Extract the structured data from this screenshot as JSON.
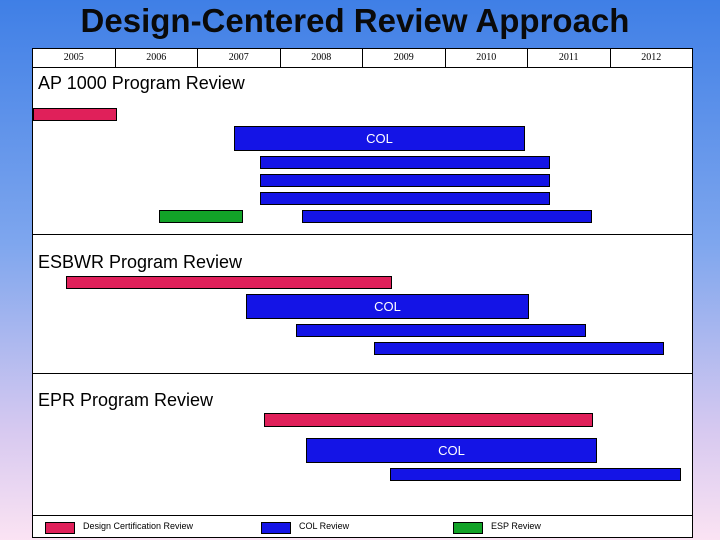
{
  "title": "Design-Centered Review Approach",
  "years": [
    "2005",
    "2006",
    "2007",
    "2008",
    "2009",
    "2010",
    "2011",
    "2012"
  ],
  "sections": [
    {
      "label": "AP 1000 Program Review",
      "bar_label": "COL"
    },
    {
      "label": "ESBWR Program Review",
      "bar_label": "COL"
    },
    {
      "label": "EPR Program Review",
      "bar_label": "COL"
    }
  ],
  "legend": [
    {
      "label": "Design Certification Review",
      "color": "#e0205a"
    },
    {
      "label": "COL Review",
      "color": "#1414e6"
    },
    {
      "label": "ESP Review",
      "color": "#12a228"
    }
  ],
  "colors": {
    "design_certification": "#e0205a",
    "col": "#1414e6",
    "esp": "#12a228"
  }
}
